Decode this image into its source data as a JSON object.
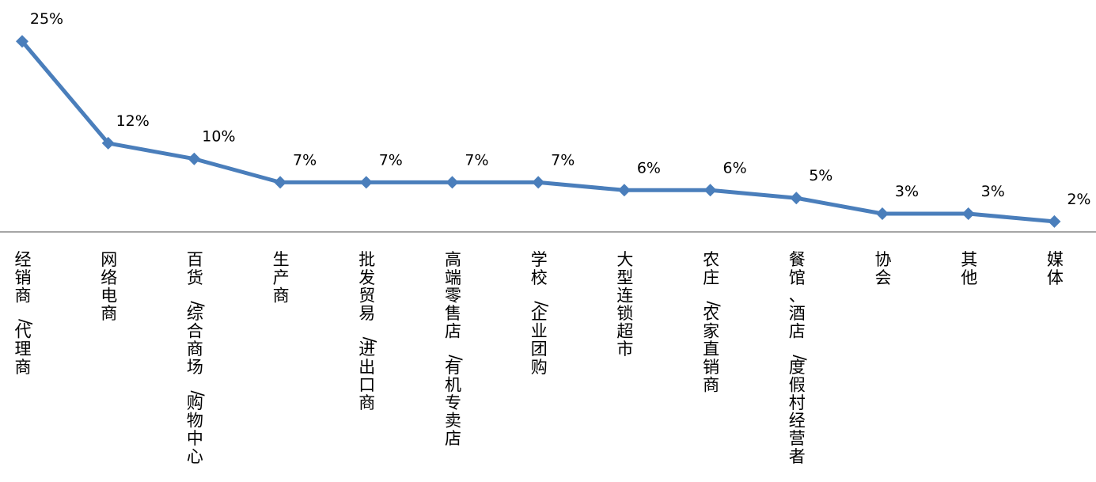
{
  "chart_data": {
    "type": "line",
    "categories": [
      "经销商/代理商",
      "网络电商",
      "百货/综合商场/购物中心",
      "生产商",
      "批发贸易/进出口商",
      "高端零售店/有机专卖店",
      "学校/企业团购",
      "大型连锁超市",
      "农庄/农家直销商",
      "餐馆、酒店/度假村经营者",
      "协会",
      "其他",
      "媒体"
    ],
    "values": [
      25,
      12,
      10,
      7,
      7,
      7,
      7,
      6,
      6,
      5,
      3,
      3,
      2
    ],
    "data_labels": [
      "25%",
      "12%",
      "10%",
      "7%",
      "7%",
      "7%",
      "7%",
      "6%",
      "6%",
      "5%",
      "3%",
      "3%",
      "2%"
    ],
    "title": "",
    "xlabel": "",
    "ylabel": "",
    "ylim": [
      0,
      25
    ],
    "grid": false,
    "legend": "none",
    "marker": "diamond",
    "colors": {
      "series": "#4a7ebb",
      "axis": "#a6a6a6",
      "text": "#000000"
    }
  }
}
